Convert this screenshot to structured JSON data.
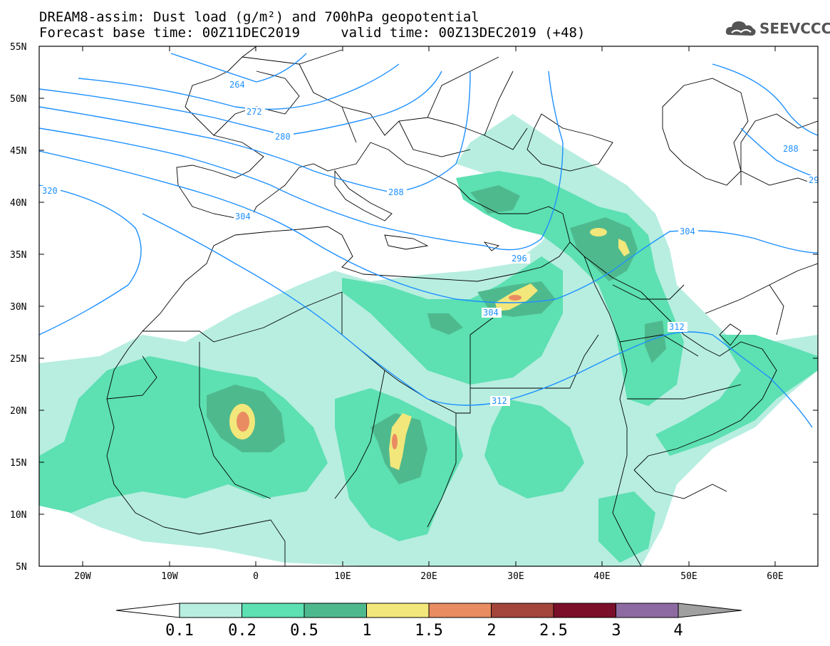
{
  "title": {
    "line1": "DREAM8-assim: Dust load (g/m²) and 700hPa geopotential",
    "line2": "Forecast base time: 00Z11DEC2019     valid time: 00Z13DEC2019 (+48)"
  },
  "logo": {
    "text": "SEEVCCC",
    "icon": "cloud-icon"
  },
  "axes": {
    "lat_labels": [
      "55N",
      "50N",
      "45N",
      "40N",
      "35N",
      "30N",
      "25N",
      "20N",
      "15N",
      "10N",
      "5N"
    ],
    "lon_labels": [
      "20W",
      "10W",
      "0",
      "10E",
      "20E",
      "30E",
      "40E",
      "50E",
      "60E"
    ]
  },
  "contour_labels": [
    "264",
    "272",
    "280",
    "288",
    "304",
    "320",
    "296",
    "304",
    "304",
    "312",
    "312",
    "288",
    "29"
  ],
  "colorbar": {
    "ticks": [
      "0.1",
      "0.2",
      "0.5",
      "1",
      "1.5",
      "2",
      "2.5",
      "3",
      "4"
    ],
    "colors": [
      "#b7eee0",
      "#5de0b2",
      "#4fb98e",
      "#f2e77a",
      "#e98c62",
      "#a3453a",
      "#7b0f2a",
      "#8e6aa2"
    ],
    "under_color": "#ffffff",
    "over_color": "#a0a0a0"
  }
}
